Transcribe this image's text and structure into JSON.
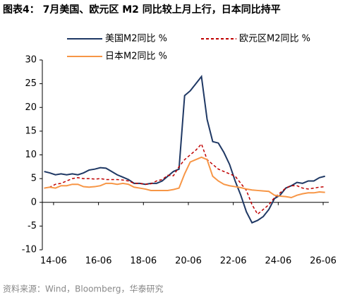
{
  "chart_data": {
    "type": "line",
    "title": "图表4：  7月美国、欧元区 M2 同比较上月上行，日本同比持平",
    "source": "资料来源：Wind，Bloomberg，华泰研究",
    "x": [
      "14-01",
      "14-04",
      "14-07",
      "14-10",
      "15-01",
      "15-04",
      "15-07",
      "15-10",
      "16-01",
      "16-04",
      "16-07",
      "16-10",
      "17-01",
      "17-04",
      "17-07",
      "17-10",
      "18-01",
      "18-04",
      "18-07",
      "18-10",
      "19-01",
      "19-04",
      "19-07",
      "19-10",
      "20-01",
      "20-04",
      "20-07",
      "20-10",
      "21-01",
      "21-04",
      "21-07",
      "21-10",
      "22-01",
      "22-04",
      "22-07",
      "22-10",
      "23-01",
      "23-04",
      "23-07",
      "23-10",
      "24-01",
      "24-04",
      "24-07",
      "24-10",
      "25-01",
      "25-04",
      "25-07",
      "25-10",
      "26-01",
      "26-04",
      "26-07"
    ],
    "xlim": [
      "13-12",
      "26-09"
    ],
    "xticks": [
      "14-06",
      "16-06",
      "18-06",
      "20-06",
      "22-06",
      "24-06",
      "26-06"
    ],
    "ylim": [
      -10,
      30
    ],
    "yticks": [
      -10,
      -5,
      0,
      5,
      10,
      15,
      20,
      25,
      30
    ],
    "series": [
      {
        "name": "美国M2同比 %",
        "color": "#1f3864",
        "style": "solid",
        "values": [
          6.5,
          6.2,
          5.8,
          6.0,
          5.8,
          6.0,
          5.8,
          6.2,
          6.8,
          7.0,
          7.3,
          7.2,
          6.5,
          5.8,
          5.3,
          4.8,
          4.0,
          4.0,
          3.8,
          4.0,
          4.0,
          4.5,
          5.5,
          6.5,
          7.0,
          22.5,
          23.5,
          25.0,
          26.5,
          17.5,
          12.8,
          12.5,
          10.5,
          8.0,
          4.5,
          1.5,
          -2.0,
          -4.3,
          -3.8,
          -3.0,
          -1.5,
          0.8,
          1.5,
          3.0,
          3.5,
          4.2,
          4.0,
          4.5,
          4.5,
          5.2,
          5.5
        ]
      },
      {
        "name": "欧元区M2同比 %",
        "color": "#c00000",
        "style": "dashed",
        "values": [
          3.0,
          3.2,
          3.8,
          4.0,
          4.5,
          5.0,
          5.2,
          5.0,
          5.0,
          4.9,
          5.0,
          4.8,
          4.8,
          4.8,
          4.7,
          4.5,
          4.0,
          4.0,
          3.8,
          3.9,
          4.5,
          4.8,
          5.7,
          5.6,
          7.5,
          9.0,
          10.0,
          11.0,
          12.3,
          9.0,
          8.0,
          7.0,
          6.5,
          6.0,
          5.5,
          4.0,
          2.5,
          -0.5,
          -2.5,
          -1.5,
          -0.5,
          1.0,
          2.0,
          3.0,
          3.5,
          3.5,
          3.0,
          2.8,
          3.0,
          3.2,
          3.3
        ]
      },
      {
        "name": "日本M2同比 %",
        "color": "#f79646",
        "style": "solid",
        "values": [
          3.0,
          3.2,
          3.0,
          3.5,
          3.5,
          3.8,
          3.8,
          3.3,
          3.2,
          3.3,
          3.5,
          4.0,
          4.0,
          3.8,
          4.0,
          3.8,
          3.2,
          3.0,
          2.8,
          2.5,
          2.5,
          2.5,
          2.5,
          2.7,
          3.0,
          6.0,
          8.5,
          9.0,
          9.5,
          9.0,
          5.5,
          4.5,
          3.8,
          3.5,
          3.3,
          3.1,
          2.8,
          2.6,
          2.5,
          2.4,
          2.3,
          1.5,
          1.3,
          1.2,
          1.0,
          1.5,
          1.8,
          2.0,
          2.0,
          2.2,
          2.1
        ]
      }
    ]
  }
}
